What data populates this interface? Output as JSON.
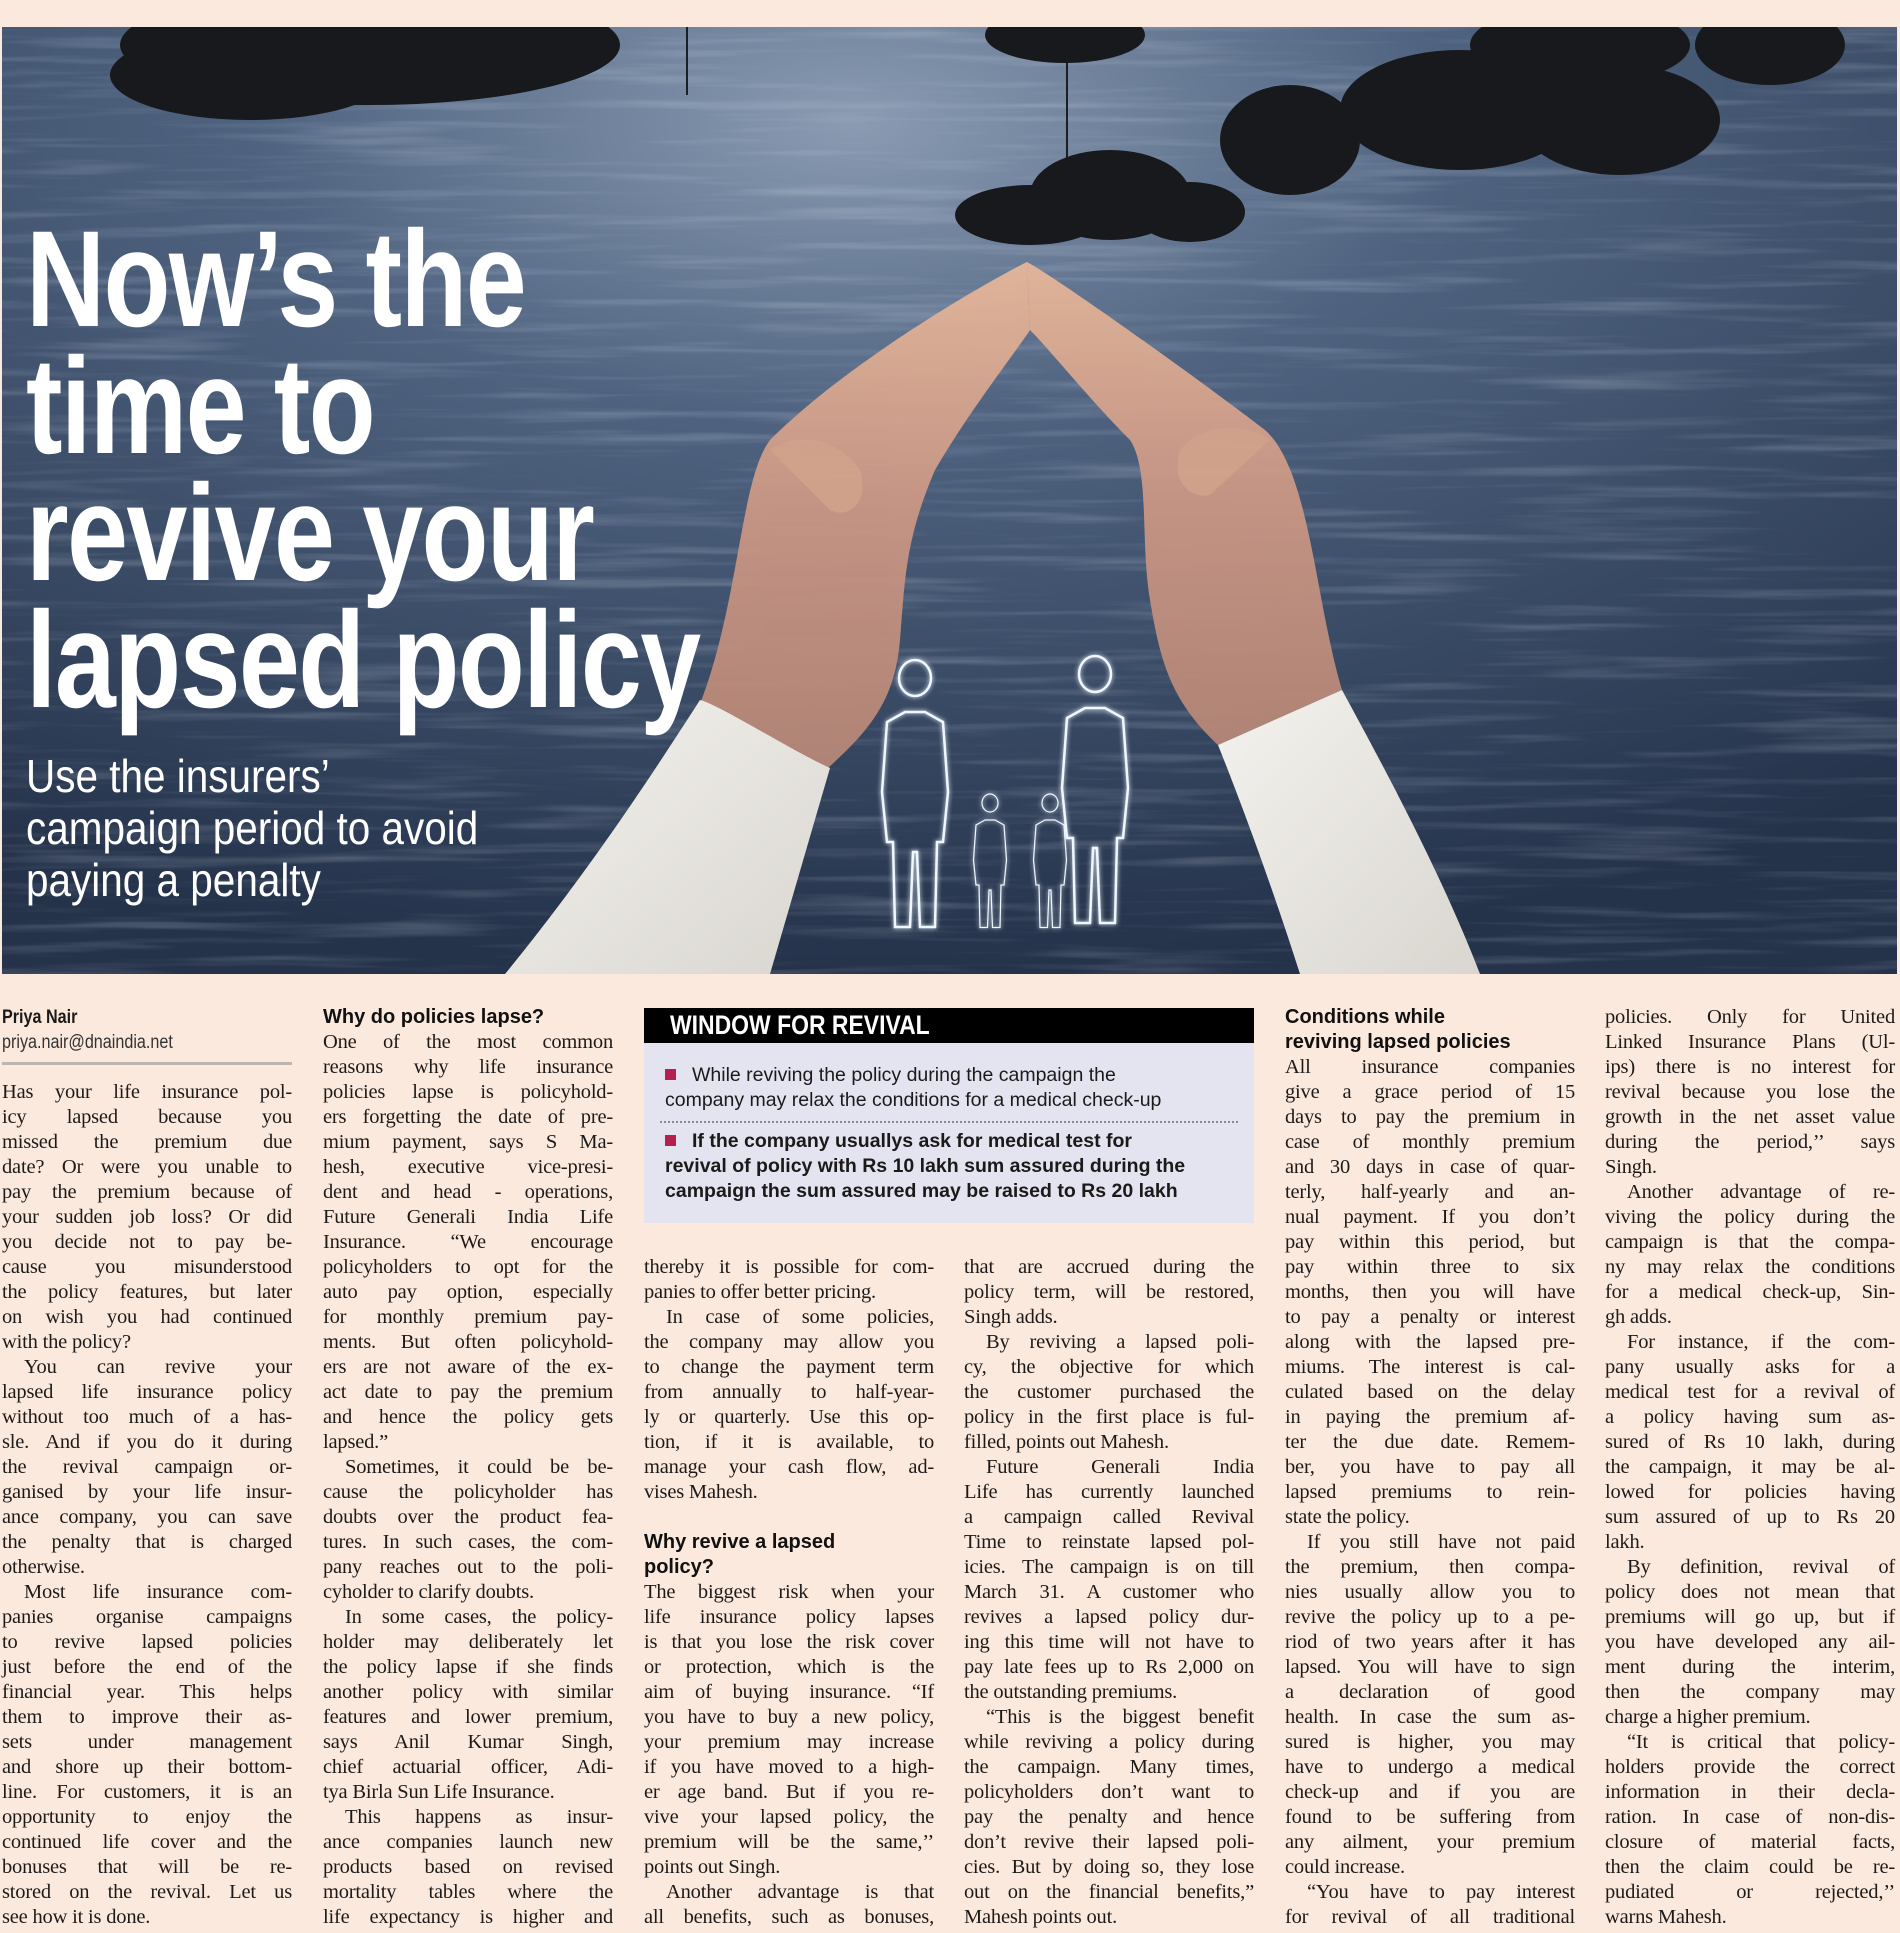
{
  "colors": {
    "page_background": "#fce9dd",
    "bullet": "#b5204e",
    "box_background": "#e3e4f0",
    "box_header": "#000000"
  },
  "hero": {
    "image": "hands-forming-roof-over-family-outline",
    "headline": {
      "lines": [
        "Now’s the",
        "time to",
        "revive your",
        "lapsed policy"
      ]
    },
    "subheadline": {
      "lines": [
        "Use the insurers’",
        "campaign period to avoid",
        "paying a penalty"
      ]
    }
  },
  "byline": {
    "author": "Priya Nair",
    "email": "priya.nair@dnaindia.net"
  },
  "sidebar_box": {
    "title": "WINDOW FOR REVIVAL",
    "bullets": [
      {
        "bold": false,
        "lines": [
          "While reviving the policy during the campaign the",
          "company may relax the conditions for a medical check-up"
        ]
      },
      {
        "bold": true,
        "lines": [
          "If the company usuallys ask for medical test for",
          "revival of policy with Rs 10 lakh sum assured during the",
          "campaign the sum assured may be raised to Rs 20 lakh"
        ]
      }
    ]
  },
  "columns": [
    {
      "blocks": [
        {
          "type": "para",
          "indent": false,
          "open_end": false,
          "lines": [
            "Has your life insurance pol-",
            "icy lapsed because you",
            "missed the premium due",
            "date? Or were you unable to",
            "pay the premium because of",
            "your sudden job loss? Or did",
            "you decide not to pay be-",
            "cause you misunderstood",
            "the policy features, but later",
            "on wish you had continued",
            "with the policy?"
          ]
        },
        {
          "type": "para",
          "indent": true,
          "open_end": false,
          "lines": [
            "You can revive your",
            "lapsed life insurance policy",
            "without too much of a has-",
            "sle. And if you do it during",
            "the revival campaign or-",
            "ganised by your life insur-",
            "ance company, you can save",
            "the penalty that is charged",
            "otherwise."
          ]
        },
        {
          "type": "para",
          "indent": true,
          "open_end": false,
          "lines": [
            "Most life insurance com-",
            "panies organise campaigns",
            "to revive lapsed policies",
            "just before the end of the",
            "financial year. This helps",
            "them to improve their as-",
            "sets under management",
            "and shore up their bottom-",
            "line. For customers, it is an",
            "opportunity to enjoy the",
            "continued life cover and the",
            "bonuses that will be re-",
            "stored on the revival. Let us",
            "see how it is done."
          ]
        }
      ]
    },
    {
      "blocks": [
        {
          "type": "heading",
          "lines": [
            "Why do policies lapse?"
          ]
        },
        {
          "type": "para",
          "indent": false,
          "open_end": false,
          "lines": [
            "One of the most common",
            "reasons why life insurance",
            "policies lapse is policyhold-",
            "ers forgetting the date of pre-",
            "mium payment, says S Ma-",
            "hesh, executive vice-presi-",
            "dent and head - operations,",
            "Future Generali India Life",
            "Insurance. “We encourage",
            "policyholders to opt for the",
            "auto pay option, especially",
            "for monthly premium pay-",
            "ments. But often policyhold-",
            "ers are not aware of the ex-",
            "act date to pay the premium",
            "and hence the policy gets",
            "lapsed.”"
          ]
        },
        {
          "type": "para",
          "indent": true,
          "open_end": false,
          "lines": [
            "Sometimes, it could be be-",
            "cause the policyholder has",
            "doubts over the product fea-",
            "tures. In such cases, the com-",
            "pany reaches out to the poli-",
            "cyholder to clarify doubts."
          ]
        },
        {
          "type": "para",
          "indent": true,
          "open_end": false,
          "lines": [
            "In some cases, the policy-",
            "holder may deliberately let",
            "the policy lapse if she finds",
            "another policy with similar",
            "features and lower premium,",
            "says Anil Kumar Singh,",
            "chief actuarial officer, Adi-",
            "tya Birla Sun Life Insurance."
          ]
        },
        {
          "type": "para",
          "indent": true,
          "open_end": true,
          "lines": [
            "This happens as insur-",
            "ance companies launch new",
            "products based on revised",
            "mortality tables where the",
            "life expectancy is higher and"
          ]
        }
      ]
    },
    {
      "blocks": [
        {
          "type": "para",
          "indent": false,
          "open_end": false,
          "lines": [
            "thereby it is possible for com-",
            "panies to offer better pricing."
          ]
        },
        {
          "type": "para",
          "indent": true,
          "open_end": false,
          "lines": [
            "In case of some policies,",
            "the company may allow you",
            "to change the payment term",
            "from annually to half-year-",
            "ly or quarterly. Use this op-",
            "tion, if it is available, to",
            "manage your cash flow, ad-",
            "vises Mahesh."
          ]
        },
        {
          "type": "heading",
          "lines": [
            "Why revive a lapsed",
            "policy?"
          ]
        },
        {
          "type": "para",
          "indent": false,
          "open_end": false,
          "lines": [
            "The biggest risk when your",
            "life insurance policy lapses",
            "is that you lose the risk cover",
            "or protection, which is the",
            "aim of buying insurance. “If",
            "you have to buy a new policy,",
            "your premium may increase",
            "if you have moved to a high-",
            "er age band. But if you re-",
            "vive your lapsed policy, the",
            "premium will be the same,’’",
            "points out Singh."
          ]
        },
        {
          "type": "para",
          "indent": true,
          "open_end": true,
          "lines": [
            "Another advantage is that",
            "all benefits, such as bonuses,"
          ]
        }
      ]
    },
    {
      "blocks": [
        {
          "type": "para",
          "indent": false,
          "open_end": false,
          "lines": [
            "that are accrued during the",
            "policy term, will be restored,",
            "Singh adds."
          ]
        },
        {
          "type": "para",
          "indent": true,
          "open_end": false,
          "lines": [
            "By reviving a lapsed poli-",
            "cy, the objective for which",
            "the customer purchased the",
            "policy in the first place is ful-",
            "filled, points out Mahesh."
          ]
        },
        {
          "type": "para",
          "indent": true,
          "open_end": false,
          "lines": [
            "Future Generali India",
            "Life has currently launched",
            "a campaign called Revival",
            "Time to reinstate lapsed pol-",
            "icies. The campaign is on till",
            "March 31. A customer who",
            "revives a lapsed policy dur-",
            "ing this time will not have to",
            "pay late fees up to Rs 2,000 on",
            "the outstanding premiums."
          ]
        },
        {
          "type": "para",
          "indent": true,
          "open_end": false,
          "lines": [
            "“This is the biggest benefit",
            "while reviving a policy during",
            "the campaign. Many times,",
            "policyholders don’t want to",
            "pay the penalty and hence",
            "don’t revive their lapsed poli-",
            "cies. But by doing so, they lose",
            "out on the financial benefits,”",
            "Mahesh points out."
          ]
        }
      ]
    },
    {
      "blocks": [
        {
          "type": "heading",
          "lines": [
            "Conditions while",
            "reviving lapsed policies"
          ]
        },
        {
          "type": "para",
          "indent": false,
          "open_end": false,
          "lines": [
            "All insurance companies",
            "give a grace period of 15",
            "days to pay the premium in",
            "case of monthly premium",
            "and 30 days in case of quar-",
            "terly, half-yearly and an-",
            "nual payment. If you don’t",
            "pay within this period, but",
            "pay within three to six",
            "months, then you will have",
            "to pay a penalty or interest",
            "along with the lapsed pre-",
            "miums. The interest is cal-",
            "culated based on the delay",
            "in paying the premium af-",
            "ter the due date. Remem-",
            "ber, you have to pay all",
            "lapsed premiums to rein-",
            "state the policy."
          ]
        },
        {
          "type": "para",
          "indent": true,
          "open_end": false,
          "lines": [
            "If you still have not paid",
            "the premium, then compa-",
            "nies usually allow you to",
            "revive the policy up to a pe-",
            "riod of two years after it has",
            "lapsed. You will have to sign",
            "a declaration of good",
            "health. In case the sum as-",
            "sured is higher, you may",
            "have to undergo a medical",
            "check-up and if you are",
            "found to be suffering from",
            "any ailment, your premium",
            "could increase."
          ]
        },
        {
          "type": "para",
          "indent": true,
          "open_end": true,
          "lines": [
            "“You have to pay interest",
            "for revival of all traditional"
          ]
        }
      ]
    },
    {
      "blocks": [
        {
          "type": "para",
          "indent": false,
          "open_end": false,
          "lines": [
            "policies. Only for United",
            "Linked Insurance Plans (Ul-",
            "ips) there is no interest for",
            "revival because you lose the",
            "growth in the net asset value",
            "during the period,’’ says",
            "Singh."
          ]
        },
        {
          "type": "para",
          "indent": true,
          "open_end": false,
          "lines": [
            "Another advantage of re-",
            "viving the policy during the",
            "campaign is that the compa-",
            "ny may relax the conditions",
            "for a medical check-up, Sin-",
            "gh adds."
          ]
        },
        {
          "type": "para",
          "indent": true,
          "open_end": false,
          "lines": [
            "For instance, if the com-",
            "pany usually asks for a",
            "medical test for a revival of",
            "a policy having sum as-",
            "sured of Rs 10 lakh, during",
            "the campaign, it may be al-",
            "lowed for policies having",
            "sum assured of up to Rs 20",
            "lakh."
          ]
        },
        {
          "type": "para",
          "indent": true,
          "open_end": false,
          "lines": [
            "By definition, revival of",
            "policy does not mean that",
            "premiums will go up, but if",
            "you have developed any ail-",
            "ment during the interim,",
            "then the company may",
            "charge a higher premium."
          ]
        },
        {
          "type": "para",
          "indent": true,
          "open_end": false,
          "lines": [
            "“It is critical that policy-",
            "holders provide the correct",
            "information in their decla-",
            "ration. In case of non-dis-",
            "closure of material facts,",
            "then the claim could be re-",
            "pudiated or rejected,’’",
            "warns Mahesh."
          ]
        }
      ]
    }
  ]
}
